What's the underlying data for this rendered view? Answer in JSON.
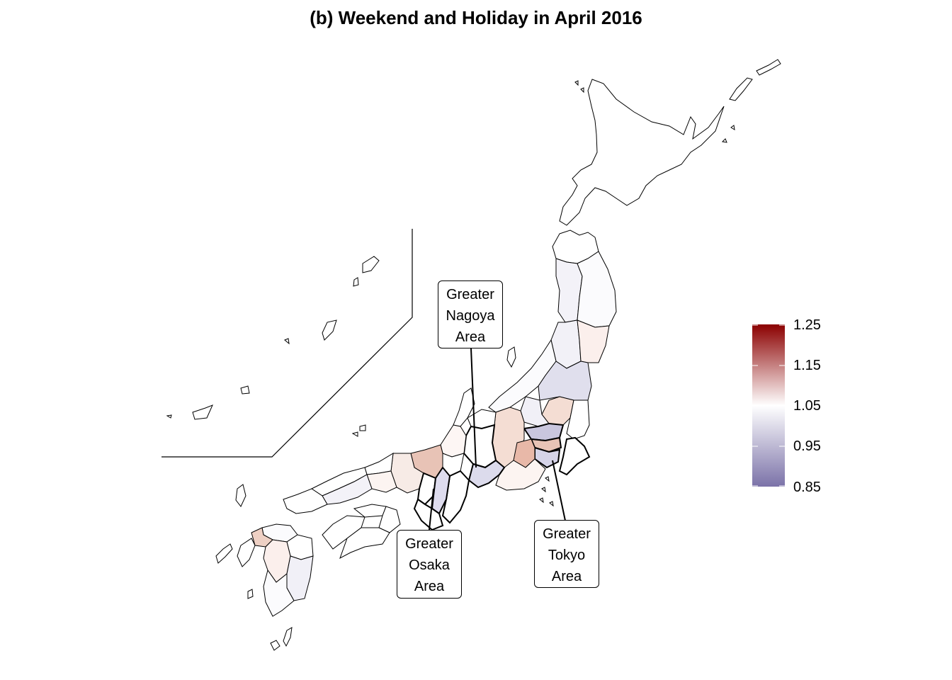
{
  "title": "(b) Weekend and Holiday in April 2016",
  "callouts": {
    "nagoya": [
      "Greater",
      "Nagoya",
      "Area"
    ],
    "osaka": [
      "Greater",
      "Osaka",
      "Area"
    ],
    "tokyo": [
      "Greater",
      "Tokyo",
      "Area"
    ]
  },
  "legend": {
    "ticks": [
      "1.25",
      "1.15",
      "1.05",
      "0.95",
      "0.85"
    ],
    "range": [
      0.85,
      1.25
    ],
    "colors": {
      "low": "#7b72a8",
      "mid": "#ffffff",
      "high": "#8b0000"
    }
  }
}
